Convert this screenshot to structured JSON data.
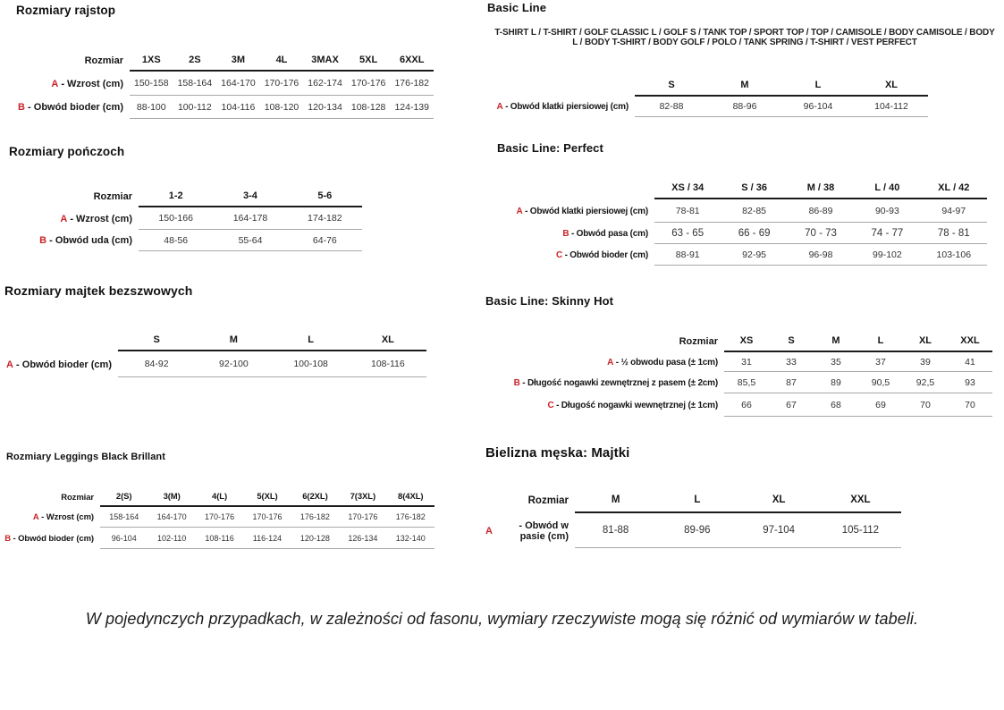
{
  "colors": {
    "accent": "#c9242a",
    "rule_dark": "#1b1b1b",
    "rule_light": "#a8a8a8"
  },
  "footnote": "W pojedynczych przypadkach, w zależności od fasonu, wymiary rzeczywiste mogą się różnić od wymiarów w tabeli.",
  "sections": [
    {
      "id": "rajstopy",
      "title": "Rozmiary rajstop",
      "corner": "Rozmiar",
      "columns": [
        "1XS",
        "2S",
        "3M",
        "4L",
        "3MAX",
        "5XL",
        "6XXL"
      ],
      "rows": [
        {
          "letter": "A",
          "label": "Wzrost (cm)",
          "values": [
            "150-158",
            "158-164",
            "164-170",
            "170-176",
            "162-174",
            "170-176",
            "176-182"
          ]
        },
        {
          "letter": "B",
          "label": "Obwód bioder (cm)",
          "values": [
            "88-100",
            "100-112",
            "104-116",
            "108-120",
            "120-134",
            "108-128",
            "124-139"
          ]
        }
      ]
    },
    {
      "id": "ponczochy",
      "title": "Rozmiary pończoch",
      "corner": "Rozmiar",
      "columns": [
        "1-2",
        "3-4",
        "5-6"
      ],
      "rows": [
        {
          "letter": "A",
          "label": "Wzrost (cm)",
          "values": [
            "150-166",
            "164-178",
            "174-182"
          ]
        },
        {
          "letter": "B",
          "label": "Obwód uda (cm)",
          "values": [
            "48-56",
            "55-64",
            "64-76"
          ]
        }
      ]
    },
    {
      "id": "majtki-bezszwowe",
      "title": "Rozmiary majtek bezszwowych",
      "corner": "",
      "columns": [
        "S",
        "M",
        "L",
        "XL"
      ],
      "rows": [
        {
          "letter": "A",
          "label": "Obwód bioder (cm)",
          "values": [
            "84-92",
            "92-100",
            "100-108",
            "108-116"
          ]
        }
      ]
    },
    {
      "id": "leggings-black-brillant",
      "title": "Rozmiary Leggings Black Brillant",
      "corner": "Rozmiar",
      "columns": [
        "2(S)",
        "3(M)",
        "4(L)",
        "5(XL)",
        "6(2XL)",
        "7(3XL)",
        "8(4XL)"
      ],
      "rows": [
        {
          "letter": "A",
          "label": "Wzrost (cm)",
          "values": [
            "158-164",
            "164-170",
            "170-176",
            "170-176",
            "176-182",
            "170-176",
            "176-182"
          ]
        },
        {
          "letter": "B",
          "label": "Obwód bioder (cm)",
          "values": [
            "96-104",
            "102-110",
            "108-116",
            "116-124",
            "120-128",
            "126-134",
            "132-140"
          ]
        }
      ]
    },
    {
      "id": "basic-line",
      "title": "Basic Line",
      "subtitle": "T-SHIRT L / T-SHIRT / GOLF CLASSIC L / GOLF S / TANK TOP / SPORT TOP / TOP / CAMISOLE / BODY CAMISOLE / BODY L / BODY T-SHIRT / BODY GOLF / POLO / TANK SPRING / T-SHIRT / VEST PERFECT",
      "corner": "",
      "columns": [
        "S",
        "M",
        "L",
        "XL"
      ],
      "rows": [
        {
          "letter": "A",
          "label": "Obwód klatki piersiowej (cm)",
          "values": [
            "82-88",
            "88-96",
            "96-104",
            "104-112"
          ]
        }
      ]
    },
    {
      "id": "basic-line-perfect",
      "title": "Basic Line: Perfect",
      "corner": "",
      "columns": [
        "XS / 34",
        "S / 36",
        "M / 38",
        "L / 40",
        "XL / 42"
      ],
      "rows": [
        {
          "letter": "A",
          "label": "Obwód klatki piersiowej (cm)",
          "values": [
            "78-81",
            "82-85",
            "86-89",
            "90-93",
            "94-97"
          ]
        },
        {
          "letter": "B",
          "label": "Obwód pasa (cm)",
          "values": [
            "63 - 65",
            "66 - 69",
            "70 - 73",
            "74 - 77",
            "78 - 81"
          ]
        },
        {
          "letter": "C",
          "label": "Obwód bioder (cm)",
          "values": [
            "88-91",
            "92-95",
            "96-98",
            "99-102",
            "103-106"
          ]
        }
      ]
    },
    {
      "id": "basic-line-skinny-hot",
      "title": "Basic Line: Skinny Hot",
      "corner": "Rozmiar",
      "columns": [
        "XS",
        "S",
        "M",
        "L",
        "XL",
        "XXL"
      ],
      "rows": [
        {
          "letter": "A",
          "label": "½ obwodu pasa (± 1cm)",
          "values": [
            "31",
            "33",
            "35",
            "37",
            "39",
            "41"
          ]
        },
        {
          "letter": "B",
          "label": "Długość nogawki zewnętrznej z pasem (± 2cm)",
          "values": [
            "85,5",
            "87",
            "89",
            "90,5",
            "92,5",
            "93"
          ]
        },
        {
          "letter": "C",
          "label": "Długość nogawki wewnętrznej (± 1cm)",
          "values": [
            "66",
            "67",
            "68",
            "69",
            "70",
            "70"
          ]
        }
      ]
    },
    {
      "id": "bielizna-meska-majtki",
      "title": "Bielizna męska: Majtki",
      "corner": "Rozmiar",
      "columns": [
        "M",
        "L",
        "XL",
        "XXL"
      ],
      "rows": [
        {
          "letter": "A",
          "label": "Obwód w pasie (cm)",
          "values": [
            "81-88",
            "89-96",
            "97-104",
            "105-112"
          ]
        }
      ]
    }
  ]
}
